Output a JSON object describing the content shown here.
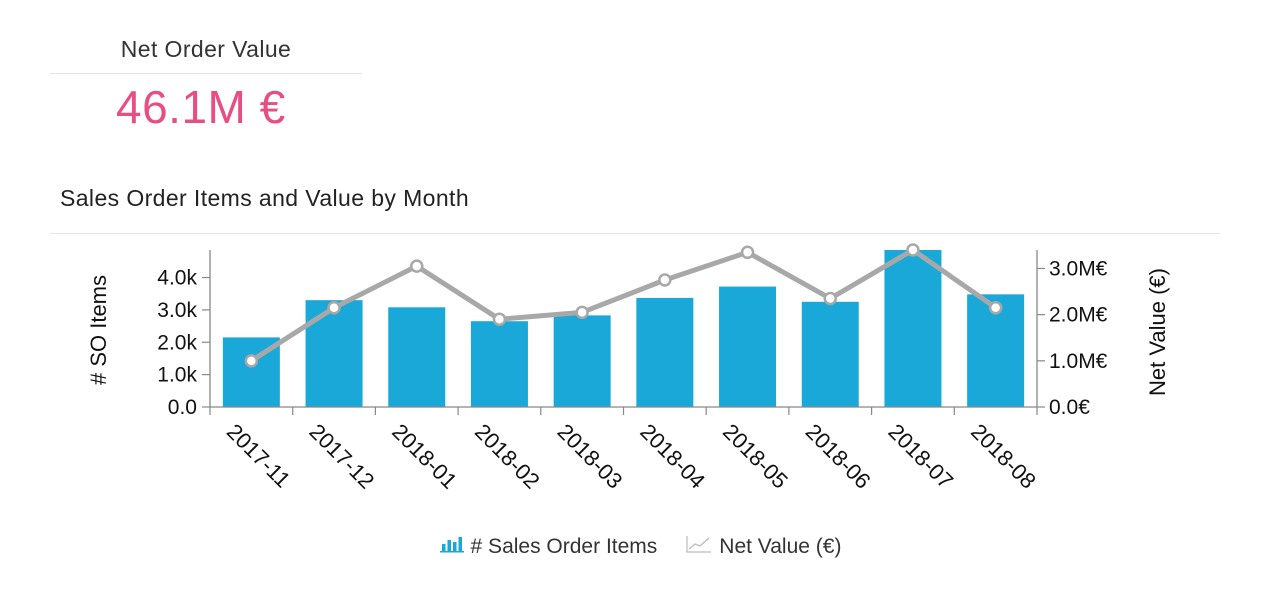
{
  "kpi": {
    "title": "Net Order Value",
    "value": "46.1M €"
  },
  "colors": {
    "kpi_value": "#e84d83",
    "bar": "#1aa8d8",
    "line": "#a8a8a8",
    "axis": "#888888"
  },
  "chart_data": {
    "type": "bar",
    "title": "Sales Order Items and Value by Month",
    "categories": [
      "2017-11",
      "2017-12",
      "2018-01",
      "2018-02",
      "2018-03",
      "2018-04",
      "2018-05",
      "2018-06",
      "2018-07",
      "2018-08"
    ],
    "series": [
      {
        "name": "# Sales Order Items",
        "type": "bar",
        "axis": "left",
        "values": [
          2150,
          3300,
          3080,
          2650,
          2830,
          3370,
          3720,
          3250,
          4850,
          3480
        ]
      },
      {
        "name": "Net Value (€)",
        "type": "line",
        "axis": "right",
        "values": [
          1.0,
          2.15,
          3.05,
          1.9,
          2.05,
          2.75,
          3.35,
          2.35,
          3.4,
          2.15
        ]
      }
    ],
    "y_left": {
      "label": "# SO Items",
      "ticks": [
        "0.0",
        "1.0k",
        "2.0k",
        "3.0k",
        "4.0k"
      ],
      "tick_values": [
        0,
        1000,
        2000,
        3000,
        4000
      ],
      "range": [
        0,
        4850
      ]
    },
    "y_right": {
      "label": "Net Value (€)",
      "ticks": [
        "0.0€",
        "1.0M€",
        "2.0M€",
        "3.0M€"
      ],
      "tick_values": [
        0,
        1.0,
        2.0,
        3.0
      ],
      "unit": "M€",
      "range": [
        0,
        3.4
      ]
    },
    "legend_position": "bottom-center",
    "grid": false
  }
}
